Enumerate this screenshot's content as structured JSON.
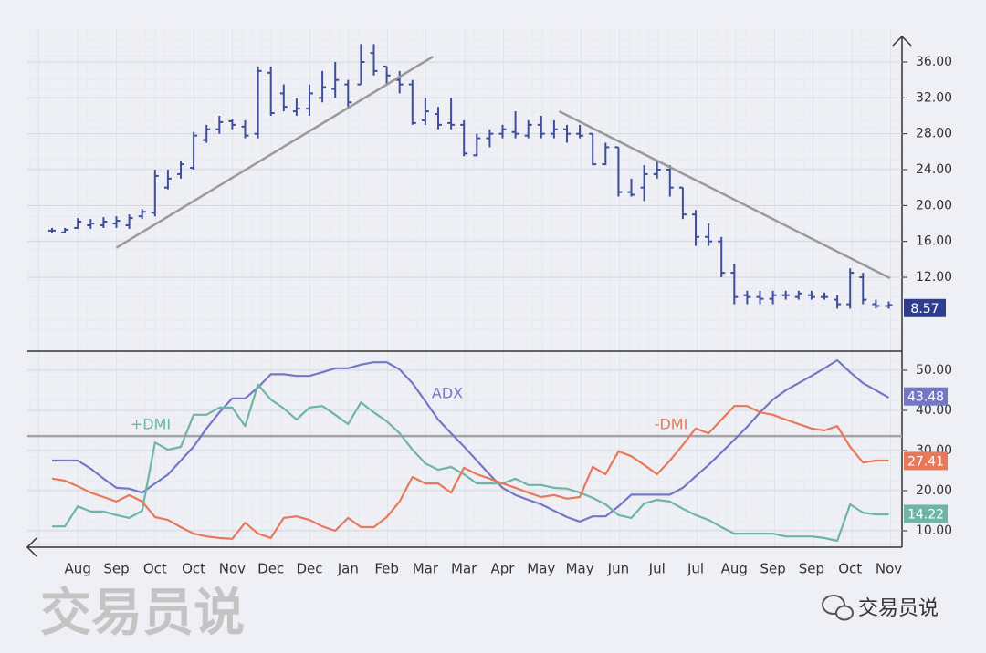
{
  "chart_data": [
    {
      "type": "ohlc",
      "color": "#3d4f9a",
      "open": [
        17.2,
        17.0,
        17.5,
        17.8,
        17.8,
        18.0,
        17.8,
        18.8,
        19.2,
        22.0,
        23.5,
        24.2,
        27.3,
        28.5,
        29.4,
        28.8,
        28.0,
        34.8,
        32.5,
        30.5,
        30.8,
        32.0,
        33.0,
        33.5,
        33.5,
        37.0,
        35.5,
        34.0,
        33.5,
        29.5,
        30.2,
        29.2,
        29.0,
        25.6,
        27.5,
        28.0,
        28.2,
        27.8,
        29.0,
        28.0,
        28.5,
        28.0,
        28.0,
        24.6,
        26.5,
        21.5,
        22.0,
        23.5,
        24.0,
        22.0,
        19.0,
        16.5,
        16.0,
        12.5,
        10.0,
        9.8,
        9.6,
        10.0,
        9.8,
        10.0,
        9.8,
        9.5,
        9.0,
        12.0,
        9.0,
        8.8
      ],
      "high": [
        17.5,
        17.5,
        18.6,
        18.5,
        18.7,
        18.8,
        19.0,
        19.6,
        24.0,
        24.0,
        25.0,
        28.2,
        29.0,
        30.0,
        29.6,
        29.5,
        35.5,
        35.5,
        33.5,
        32.0,
        33.5,
        35.0,
        36.0,
        34.0,
        38.0,
        38.0,
        35.5,
        35.0,
        34.0,
        32.0,
        31.0,
        32.0,
        29.5,
        28.0,
        28.5,
        29.0,
        30.5,
        29.5,
        30.0,
        29.5,
        29.0,
        29.0,
        28.0,
        27.0,
        26.5,
        23.0,
        24.5,
        25.0,
        24.5,
        22.0,
        19.5,
        18.0,
        16.5,
        13.5,
        10.5,
        10.5,
        10.5,
        10.5,
        10.5,
        10.5,
        10.3,
        10.0,
        13.0,
        12.5,
        9.5,
        9.3
      ],
      "low": [
        16.9,
        16.9,
        17.4,
        17.4,
        17.5,
        17.5,
        17.4,
        18.5,
        18.8,
        21.8,
        23.0,
        24.0,
        27.0,
        28.0,
        28.5,
        27.5,
        27.5,
        30.0,
        30.5,
        30.0,
        30.0,
        31.5,
        32.0,
        31.0,
        33.5,
        34.5,
        33.5,
        32.5,
        29.0,
        29.0,
        28.5,
        28.5,
        25.5,
        25.5,
        26.5,
        27.5,
        27.5,
        27.5,
        27.5,
        27.5,
        27.0,
        27.5,
        24.5,
        24.5,
        21.0,
        21.0,
        20.5,
        23.0,
        21.0,
        18.5,
        15.5,
        15.5,
        12.0,
        9.0,
        9.0,
        9.0,
        9.0,
        9.5,
        9.5,
        9.5,
        9.5,
        8.5,
        8.5,
        9.0,
        8.5,
        8.5
      ],
      "close": [
        17.2,
        17.3,
        18.2,
        18.0,
        18.2,
        18.3,
        18.6,
        19.3,
        23.3,
        23.0,
        24.6,
        27.8,
        28.5,
        29.3,
        29.0,
        27.8,
        35.0,
        30.3,
        31.0,
        30.8,
        32.5,
        33.2,
        34.0,
        31.5,
        36.0,
        35.0,
        34.5,
        33.5,
        29.2,
        30.5,
        29.0,
        29.0,
        25.8,
        27.5,
        28.0,
        28.5,
        28.0,
        29.0,
        28.0,
        28.5,
        28.0,
        27.8,
        24.6,
        26.5,
        21.5,
        21.2,
        23.5,
        24.0,
        22.0,
        19.0,
        16.5,
        16.0,
        12.5,
        9.8,
        9.8,
        9.6,
        10.0,
        10.0,
        10.2,
        9.8,
        9.8,
        9.0,
        12.5,
        9.5,
        8.8,
        8.9
      ],
      "last_value": 8.57,
      "ylim": [
        4,
        39
      ],
      "yticks": [
        {
          "value": 12,
          "label": "12.00"
        },
        {
          "value": 16,
          "label": "16.00"
        },
        {
          "value": 20,
          "label": "20.00"
        },
        {
          "value": 24,
          "label": "24.00"
        },
        {
          "value": 28,
          "label": "28.00"
        },
        {
          "value": 32,
          "label": "32.00"
        },
        {
          "value": 36,
          "label": "36.00"
        }
      ],
      "trendlines": [
        {
          "x": [
            5.0,
            29.6
          ],
          "y": [
            15.3,
            36.6
          ],
          "color": "#9a9a9a"
        },
        {
          "x": [
            39.4,
            65.1
          ],
          "y": [
            30.5,
            11.9
          ],
          "color": "#9a9a9a"
        }
      ],
      "grid": true
    },
    {
      "type": "line",
      "categories": [
        null,
        null,
        "Aug",
        null,
        null,
        "Sep",
        null,
        null,
        "Oct",
        null,
        null,
        "Oct",
        null,
        null,
        "Nov",
        null,
        null,
        "Dec",
        null,
        null,
        "Dec",
        null,
        null,
        "Jan",
        null,
        null,
        "Feb",
        null,
        null,
        "Mar",
        null,
        null,
        "Mar",
        null,
        null,
        "Apr",
        null,
        null,
        "May",
        null,
        null,
        "May",
        null,
        null,
        "Jun",
        null,
        null,
        "Jul",
        null,
        null,
        "Jul",
        null,
        null,
        "Aug",
        null,
        null,
        "Sep",
        null,
        null,
        "Sep",
        null,
        null,
        "Oct",
        null,
        null,
        "Nov"
      ],
      "series": [
        {
          "name": "ADX",
          "color": "#7478c4",
          "last_value": 43.48,
          "values": [
            27.5,
            27.5,
            27.5,
            25.5,
            23.0,
            20.7,
            20.5,
            19.5,
            21.8,
            24.0,
            27.5,
            31.0,
            35.5,
            39.5,
            43.0,
            43.0,
            45.7,
            49.0,
            49.0,
            48.6,
            48.6,
            49.5,
            50.5,
            50.5,
            51.4,
            52.0,
            52.0,
            50.2,
            46.8,
            42.3,
            37.7,
            34.3,
            31.0,
            27.5,
            24.0,
            20.7,
            18.9,
            17.7,
            16.6,
            15.0,
            13.4,
            12.3,
            13.6,
            13.6,
            16.1,
            19.0,
            19.0,
            19.0,
            19.0,
            20.7,
            23.6,
            26.4,
            29.5,
            32.7,
            35.9,
            39.5,
            42.7,
            45.0,
            46.8,
            48.6,
            50.5,
            52.5,
            49.5,
            46.8,
            45.0,
            43.2
          ]
        },
        {
          "name": "+DMI",
          "color": "#6db5a6",
          "last_value": 14.22,
          "values": [
            11.1,
            11.1,
            16.1,
            14.8,
            14.8,
            13.9,
            13.2,
            15.0,
            32.0,
            30.2,
            30.9,
            38.9,
            38.9,
            40.7,
            40.7,
            36.1,
            46.4,
            42.7,
            40.5,
            37.7,
            40.7,
            41.1,
            38.9,
            36.6,
            42.0,
            39.5,
            37.3,
            34.3,
            30.2,
            26.8,
            25.2,
            25.9,
            24.1,
            21.8,
            21.8,
            21.8,
            23.0,
            21.4,
            21.4,
            20.7,
            20.5,
            19.5,
            18.2,
            16.6,
            13.9,
            13.2,
            16.8,
            17.7,
            17.3,
            15.5,
            13.9,
            12.7,
            10.9,
            9.3,
            9.3,
            9.3,
            9.3,
            8.6,
            8.6,
            8.6,
            8.2,
            7.5,
            16.6,
            14.5,
            14.1,
            14.1
          ]
        },
        {
          "name": "-DMI",
          "color": "#e8785a",
          "last_value": 27.41,
          "values": [
            23.0,
            22.5,
            21.1,
            19.5,
            18.4,
            17.3,
            18.9,
            17.3,
            13.4,
            12.7,
            10.9,
            9.3,
            8.6,
            8.2,
            8.0,
            12.0,
            9.3,
            8.2,
            13.2,
            13.6,
            12.7,
            11.1,
            10.0,
            13.2,
            10.9,
            10.9,
            13.4,
            17.3,
            23.4,
            21.8,
            21.8,
            19.5,
            25.7,
            24.1,
            23.0,
            21.8,
            20.7,
            19.5,
            18.4,
            18.9,
            18.0,
            18.4,
            25.9,
            24.1,
            29.8,
            28.6,
            26.4,
            24.1,
            27.5,
            31.4,
            35.5,
            34.3,
            37.7,
            41.1,
            41.1,
            39.5,
            38.9,
            37.7,
            36.6,
            35.5,
            35.0,
            36.1,
            30.9,
            27.0,
            27.5,
            27.5
          ]
        }
      ],
      "hline": 33.6,
      "ylim": [
        6,
        54.5
      ],
      "yticks": [
        {
          "value": 10,
          "label": "10.00"
        },
        {
          "value": 20,
          "label": "20.00"
        },
        {
          "value": 30,
          "label": "30.00"
        },
        {
          "value": 40,
          "label": "40.00"
        },
        {
          "value": 50,
          "label": "50.00"
        }
      ],
      "grid": true
    }
  ],
  "watermark": "交易员说",
  "brand": "交易员说"
}
